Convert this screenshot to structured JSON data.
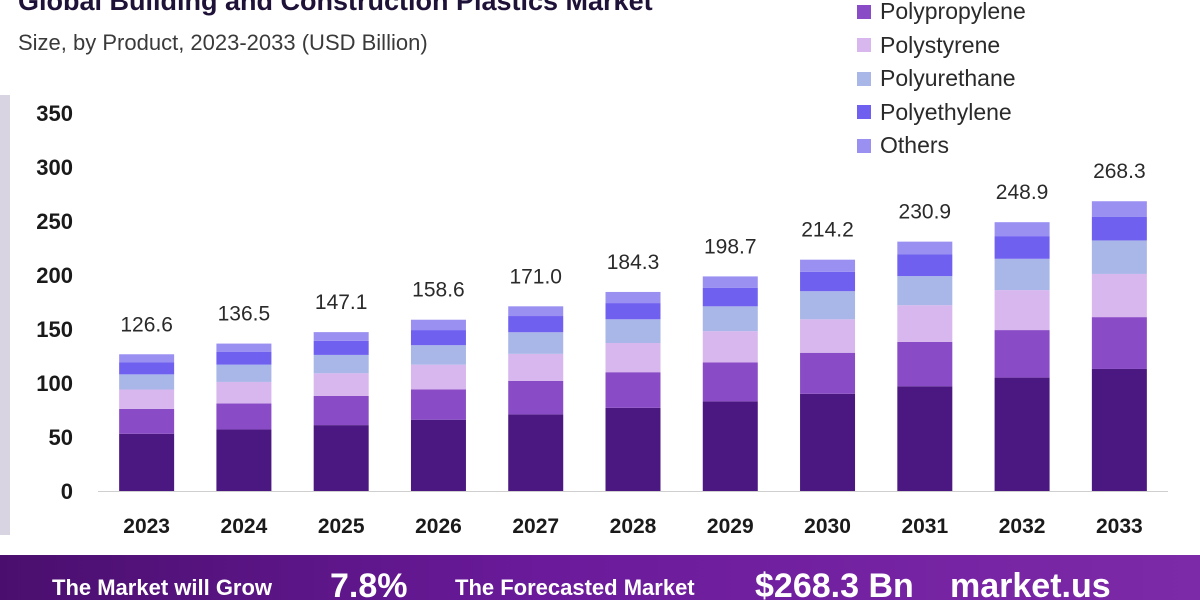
{
  "header": {
    "title": "Global Building and Construction Plastics Market",
    "subtitle": "Size, by Product, 2023-2033 (USD Billion)"
  },
  "legend": [
    {
      "label": "Polypropylene",
      "color": "#8a4cc6"
    },
    {
      "label": "Polystyrene",
      "color": "#d8b6ee"
    },
    {
      "label": "Polyurethane",
      "color": "#a9b6e8"
    },
    {
      "label": "Polyethylene",
      "color": "#7060f0"
    },
    {
      "label": "Others",
      "color": "#9a90f2"
    }
  ],
  "chart_data": {
    "type": "bar",
    "stacked": true,
    "title": "Global Building and Construction Plastics Market",
    "subtitle": "Size, by Product, 2023-2033 (USD Billion)",
    "categories": [
      "2023",
      "2024",
      "2025",
      "2026",
      "2027",
      "2028",
      "2029",
      "2030",
      "2031",
      "2032",
      "2033"
    ],
    "totals": [
      "126.6",
      "136.5",
      "147.1",
      "158.6",
      "171.0",
      "184.3",
      "198.7",
      "214.2",
      "230.9",
      "248.9",
      "268.3"
    ],
    "series": [
      {
        "color": "#4b1882",
        "values": [
          53,
          57,
          61,
          66,
          71,
          77,
          83,
          90,
          97,
          105,
          113
        ]
      },
      {
        "name": "Polypropylene",
        "color": "#8a4cc6",
        "values": [
          23,
          24,
          27,
          28,
          31,
          33,
          36,
          38,
          41,
          44,
          48
        ]
      },
      {
        "name": "Polystyrene",
        "color": "#d8b6ee",
        "values": [
          18,
          20,
          21,
          23,
          25,
          27,
          29,
          31,
          34,
          37,
          40
        ]
      },
      {
        "name": "Polyurethane",
        "color": "#a9b6e8",
        "values": [
          14,
          16,
          17,
          18,
          20,
          22,
          23,
          26,
          27,
          29,
          31
        ]
      },
      {
        "name": "Polyethylene",
        "color": "#7060f0",
        "values": [
          11,
          12,
          13,
          14,
          15,
          15,
          17,
          18,
          20,
          21,
          22
        ]
      },
      {
        "name": "Others",
        "color": "#9a90f2",
        "values": [
          7.6,
          7.5,
          8.1,
          9.6,
          9.0,
          10.3,
          10.7,
          11.2,
          11.9,
          12.9,
          14.3
        ]
      }
    ],
    "ylim": [
      0,
      350
    ],
    "yticks": [
      0,
      50,
      100,
      150,
      200,
      250,
      300,
      350
    ],
    "grid": false,
    "legend_position": "top-right"
  },
  "footer": {
    "grow_text": "The Market will Grow",
    "cagr_value": "7.8%",
    "forecast_text": "The Forecasted Market",
    "forecast_value": "$268.3 Bn",
    "source": "market.us"
  }
}
